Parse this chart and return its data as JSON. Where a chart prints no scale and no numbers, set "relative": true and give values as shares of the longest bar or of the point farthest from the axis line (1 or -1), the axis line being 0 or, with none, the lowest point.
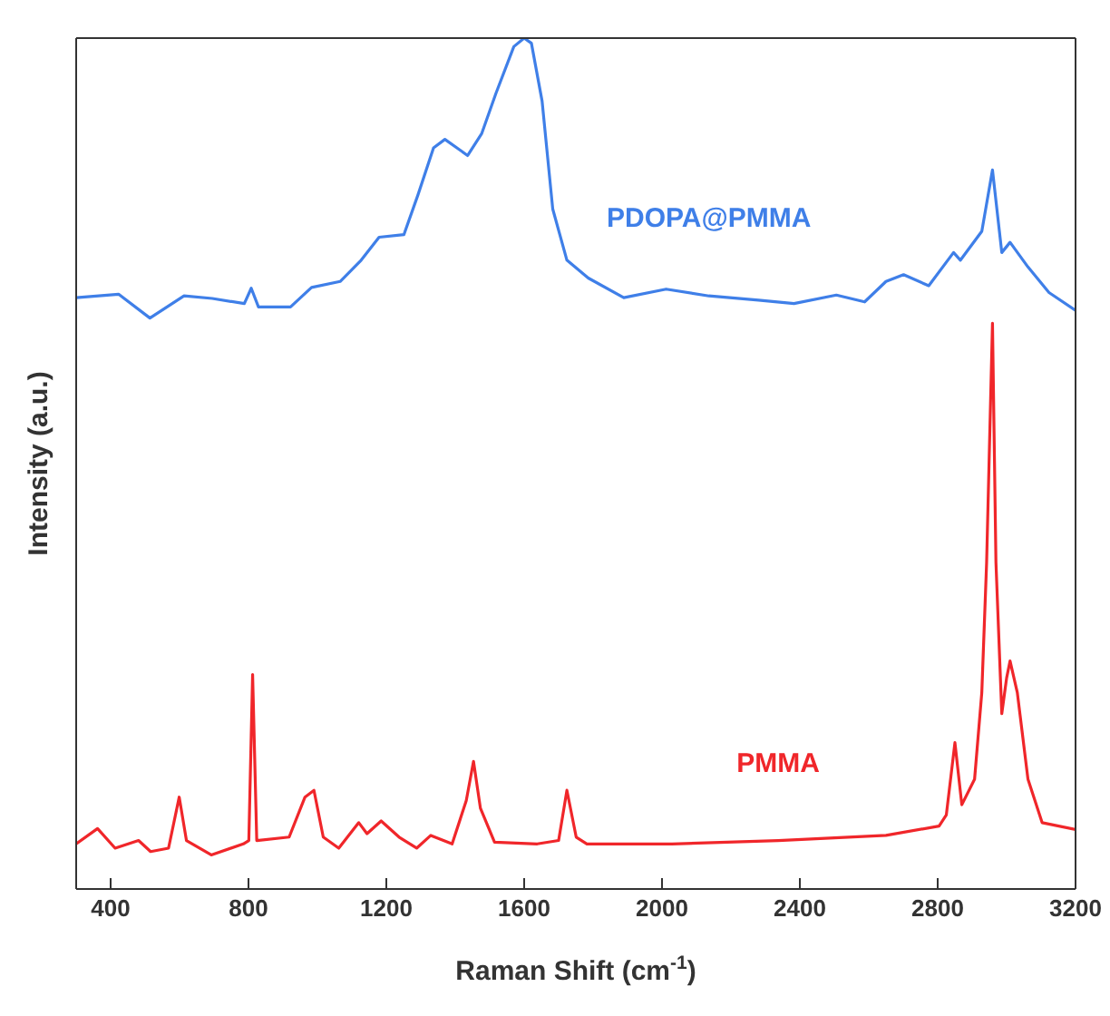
{
  "chart_data": {
    "type": "line",
    "xlabel": "Raman Shift (cm$^{-1}$)",
    "ylabel": "Intensity (a.u.)",
    "relative": true,
    "xlim": [
      300,
      3200
    ],
    "xticks": [
      400,
      800,
      1200,
      1600,
      2000,
      2400,
      2800,
      3200
    ],
    "marker": "none",
    "line_style": "solid",
    "series": [
      {
        "name": "PDOPA@PMMA",
        "color": "#3f7fe8",
        "x": [
          300,
          423,
          514,
          613,
          695,
          788,
          808,
          829,
          922,
          983,
          1066,
          1127,
          1179,
          1251,
          1292,
          1337,
          1370,
          1436,
          1477,
          1518,
          1570,
          1600,
          1621,
          1652,
          1683,
          1724,
          1786,
          1889,
          2012,
          2136,
          2280,
          2383,
          2506,
          2588,
          2650,
          2701,
          2774,
          2846,
          2866,
          2928,
          2959,
          2986,
          3010,
          3062,
          3123,
          3200
        ],
        "values": [
          0.695,
          0.699,
          0.671,
          0.697,
          0.694,
          0.688,
          0.706,
          0.684,
          0.684,
          0.707,
          0.714,
          0.739,
          0.766,
          0.769,
          0.816,
          0.871,
          0.881,
          0.862,
          0.888,
          0.935,
          0.99,
          1,
          0.994,
          0.926,
          0.799,
          0.739,
          0.718,
          0.695,
          0.705,
          0.697,
          0.692,
          0.688,
          0.698,
          0.69,
          0.714,
          0.722,
          0.709,
          0.748,
          0.739,
          0.773,
          0.845,
          0.748,
          0.76,
          0.731,
          0.701,
          0.68
        ]
      },
      {
        "name": "PMMA",
        "color": "#f0262a",
        "x": [
          300,
          362,
          413,
          481,
          516,
          568,
          599,
          620,
          692,
          785,
          801,
          812,
          824,
          918,
          964,
          990,
          1017,
          1062,
          1120,
          1144,
          1185,
          1237,
          1288,
          1329,
          1391,
          1432,
          1453,
          1473,
          1514,
          1638,
          1700,
          1724,
          1751,
          1782,
          2029,
          2337,
          2650,
          2804,
          2825,
          2850,
          2870,
          2907,
          2928,
          2942,
          2959,
          2969,
          2986,
          3000,
          3010,
          3031,
          3062,
          3103,
          3200
        ],
        "values": [
          0.053,
          0.071,
          0.048,
          0.057,
          0.044,
          0.048,
          0.108,
          0.057,
          0.04,
          0.053,
          0.057,
          0.252,
          0.057,
          0.061,
          0.108,
          0.116,
          0.061,
          0.048,
          0.078,
          0.065,
          0.08,
          0.061,
          0.048,
          0.063,
          0.053,
          0.104,
          0.15,
          0.095,
          0.055,
          0.053,
          0.057,
          0.116,
          0.061,
          0.053,
          0.053,
          0.057,
          0.063,
          0.074,
          0.087,
          0.172,
          0.099,
          0.129,
          0.231,
          0.384,
          0.665,
          0.384,
          0.206,
          0.248,
          0.268,
          0.231,
          0.129,
          0.078,
          0.07
        ]
      }
    ]
  }
}
